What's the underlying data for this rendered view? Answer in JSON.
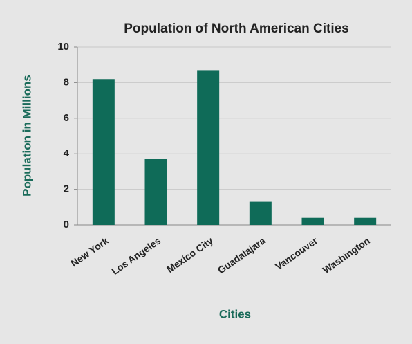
{
  "chart_data": {
    "type": "bar",
    "title": "Population of North American Cities",
    "x_label": "Cities",
    "y_label": "Population in Millions",
    "categories": [
      "New York",
      "Los Angeles",
      "Mexico City",
      "Guadalajara",
      "Vancouver",
      "Washington"
    ],
    "values": [
      8.2,
      3.7,
      8.7,
      1.3,
      0.4,
      0.4
    ],
    "color": "#0f6b58",
    "ylim": [
      0,
      10
    ],
    "yticks": [
      0,
      2,
      4,
      6,
      8,
      10
    ],
    "grid": true
  }
}
